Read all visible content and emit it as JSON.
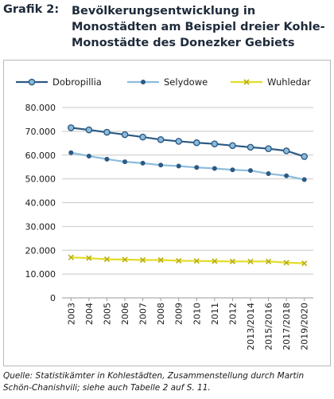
{
  "header": {
    "label": "Grafik 2:",
    "title": "Bevölkerungsentwicklung in Monostädten am Beispiel dreier Kohle-Monostädte des Donezker Gebiets"
  },
  "source": "Quelle: Statistikämter in Kohlestädten, Zusammenstellung durch Martin Schön-Chanishvili; siehe auch Tabelle 2 auf S. 11.",
  "colors": {
    "dobropillia": "#2c5a84",
    "selydowe": "#8cbcdc",
    "wuhledar": "#e3dc2a",
    "grid": "#c8c8c8"
  },
  "chart_data": {
    "type": "line",
    "categories": [
      "2003",
      "2004",
      "2005",
      "2006",
      "2007",
      "2008",
      "2009",
      "2010",
      "2011",
      "2012",
      "2013/2014",
      "2015/2016",
      "2017/2018",
      "2019/2020"
    ],
    "ylim": [
      0,
      80000
    ],
    "yticks": [
      "0",
      "10.000",
      "20.000",
      "30.000",
      "40.000",
      "50.000",
      "60.000",
      "70.000",
      "80.000"
    ],
    "grid": "horizontal",
    "legend": "top",
    "series": [
      {
        "name": "Dobropillia",
        "values": [
          71500,
          70600,
          69600,
          68600,
          67600,
          66500,
          65800,
          65200,
          64700,
          64000,
          63300,
          62700,
          61800,
          59400
        ]
      },
      {
        "name": "Selydowe",
        "values": [
          61000,
          59600,
          58300,
          57200,
          56600,
          55800,
          55400,
          54800,
          54400,
          53800,
          53500,
          52200,
          51300,
          49700
        ]
      },
      {
        "name": "Wuhledar",
        "values": [
          17000,
          16700,
          16200,
          16100,
          15900,
          15900,
          15600,
          15500,
          15400,
          15300,
          15300,
          15300,
          14800,
          14500
        ]
      }
    ]
  }
}
